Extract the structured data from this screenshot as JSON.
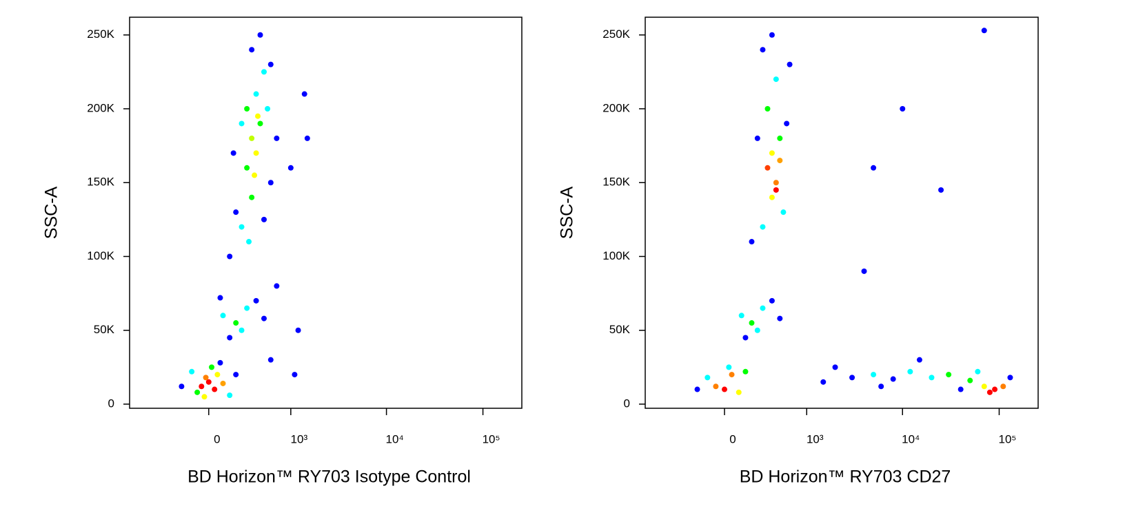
{
  "chart_data": [
    {
      "type": "scatter",
      "x_label": "BD Horizon™ RY703 Isotype Control",
      "y_label": "SSC-A",
      "x_scale": "asinh",
      "x_scale_cofactor": 288,
      "xlim": [
        -930,
        253000
      ],
      "ylim": [
        -2800,
        262000
      ],
      "xticks": [
        0,
        {
          "value": 1000,
          "label": "10³"
        },
        {
          "value": 10000,
          "label": "10⁴"
        },
        {
          "value": 100000,
          "label": "10⁵"
        }
      ],
      "yticks": [
        0,
        {
          "value": 50000,
          "label": "50K"
        },
        {
          "value": 100000,
          "label": "100K"
        },
        {
          "value": 150000,
          "label": "150K"
        },
        {
          "value": 200000,
          "label": "200K"
        },
        {
          "value": 250000,
          "label": "250K"
        }
      ],
      "x": [
        -50,
        0,
        40,
        -20,
        60,
        -80,
        100,
        -120,
        150,
        -200,
        200,
        20,
        -30,
        80,
        100,
        200,
        300,
        150,
        400,
        250,
        80,
        500,
        250,
        350,
        300,
        400,
        350,
        450,
        300,
        400,
        500,
        350,
        450,
        200,
        600,
        550,
        250,
        600,
        180,
        700,
        380,
        420,
        320,
        500,
        150,
        1000,
        1400,
        1200,
        1500,
        700,
        600,
        1100
      ],
      "y": [
        12000,
        15000,
        10000,
        18000,
        20000,
        8000,
        14000,
        22000,
        6000,
        12000,
        20000,
        25000,
        5000,
        28000,
        60000,
        55000,
        65000,
        45000,
        70000,
        50000,
        72000,
        58000,
        120000,
        140000,
        160000,
        170000,
        180000,
        190000,
        200000,
        210000,
        225000,
        240000,
        250000,
        130000,
        150000,
        200000,
        190000,
        230000,
        170000,
        180000,
        155000,
        195000,
        110000,
        125000,
        100000,
        160000,
        210000,
        50000,
        180000,
        80000,
        30000,
        20000
      ],
      "colors": [
        "#ff0000",
        "#ff0000",
        "#ff0000",
        "#ff8000",
        "#ffff00",
        "#00ff00",
        "#ffa000",
        "#00ffff",
        "#00ffff",
        "#0000ff",
        "#0000ff",
        "#00ff00",
        "#ffff00",
        "#0000ff",
        "#00ffff",
        "#00ff00",
        "#00ffff",
        "#0000ff",
        "#0000ff",
        "#00ffff",
        "#0000ff",
        "#0000ff",
        "#00ffff",
        "#00ff00",
        "#00ff00",
        "#ffff00",
        "#c0ff00",
        "#00ff00",
        "#00ff00",
        "#00ffff",
        "#00ffff",
        "#0000ff",
        "#0000ff",
        "#0000ff",
        "#0000ff",
        "#00ffff",
        "#00ffff",
        "#0000ff",
        "#0000ff",
        "#0000ff",
        "#ffff00",
        "#ffff00",
        "#00ffff",
        "#0000ff",
        "#0000ff",
        "#0000ff",
        "#0000ff",
        "#0000ff",
        "#0000ff",
        "#0000ff",
        "#0000ff",
        "#0000ff"
      ]
    },
    {
      "type": "scatter",
      "x_label": "BD Horizon™ RY703 CD27",
      "y_label": "SSC-A",
      "x_scale": "asinh",
      "x_scale_cofactor": 288,
      "xlim": [
        -930,
        253000
      ],
      "ylim": [
        -2800,
        262000
      ],
      "xticks": [
        0,
        {
          "value": 1000,
          "label": "10³"
        },
        {
          "value": 10000,
          "label": "10⁴"
        },
        {
          "value": 100000,
          "label": "10⁵"
        }
      ],
      "yticks": [
        0,
        {
          "value": 50000,
          "label": "50K"
        },
        {
          "value": 100000,
          "label": "100K"
        },
        {
          "value": 150000,
          "label": "150K"
        },
        {
          "value": 200000,
          "label": "200K"
        },
        {
          "value": 250000,
          "label": "250K"
        }
      ],
      "x": [
        0,
        -60,
        50,
        100,
        -120,
        150,
        -200,
        30,
        120,
        200,
        300,
        150,
        400,
        250,
        500,
        300,
        400,
        350,
        450,
        400,
        500,
        350,
        450,
        300,
        600,
        550,
        250,
        650,
        200,
        400,
        450,
        500,
        1500,
        3000,
        5000,
        8000,
        12000,
        20000,
        30000,
        50000,
        70000,
        90000,
        80000,
        110000,
        60000,
        130000,
        40000,
        2000,
        6000,
        15000,
        10000,
        5000,
        25000,
        4000,
        70000
      ],
      "y": [
        10000,
        12000,
        20000,
        8000,
        18000,
        22000,
        10000,
        25000,
        60000,
        55000,
        65000,
        45000,
        70000,
        50000,
        58000,
        120000,
        140000,
        160000,
        150000,
        170000,
        180000,
        200000,
        220000,
        240000,
        190000,
        130000,
        180000,
        230000,
        110000,
        250000,
        145000,
        165000,
        15000,
        18000,
        20000,
        17000,
        22000,
        18000,
        20000,
        16000,
        12000,
        10000,
        8000,
        12000,
        22000,
        18000,
        10000,
        25000,
        12000,
        30000,
        200000,
        160000,
        145000,
        90000,
        253000
      ],
      "colors": [
        "#ff0000",
        "#ff8000",
        "#ff8000",
        "#ffff00",
        "#00ffff",
        "#00ff00",
        "#0000ff",
        "#00ffff",
        "#00ffff",
        "#00ff00",
        "#00ffff",
        "#0000ff",
        "#0000ff",
        "#00ffff",
        "#0000ff",
        "#00ffff",
        "#ffff00",
        "#ff4000",
        "#ff8000",
        "#ffff00",
        "#00ff00",
        "#00ff00",
        "#00ffff",
        "#0000ff",
        "#0000ff",
        "#00ffff",
        "#0000ff",
        "#0000ff",
        "#0000ff",
        "#0000ff",
        "#ff0000",
        "#ffa000",
        "#0000ff",
        "#0000ff",
        "#00ffff",
        "#0000ff",
        "#00ffff",
        "#00ffff",
        "#00ff00",
        "#00ff00",
        "#ffff00",
        "#ff0000",
        "#ff0000",
        "#ff8000",
        "#00ffff",
        "#0000ff",
        "#0000ff",
        "#0000ff",
        "#0000ff",
        "#0000ff",
        "#0000ff",
        "#0000ff",
        "#0000ff",
        "#0000ff",
        "#0000ff"
      ]
    }
  ]
}
